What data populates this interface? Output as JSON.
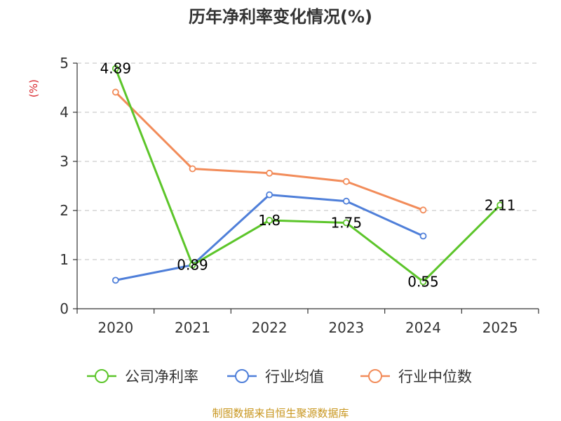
{
  "chart_data": {
    "type": "line",
    "title": "历年净利率变化情况(%)",
    "ylabel": "(%)",
    "categories": [
      "2020",
      "2021",
      "2022",
      "2023",
      "2024",
      "2025"
    ],
    "ylim": [
      0,
      5
    ],
    "yticks": [
      "0",
      "1",
      "2",
      "3",
      "4",
      "5"
    ],
    "grid": true,
    "legend_position": "bottom",
    "series": [
      {
        "name": "公司净利率",
        "color": "#5cc52a",
        "values": [
          4.89,
          0.89,
          1.8,
          1.75,
          0.55,
          2.11
        ],
        "labels": [
          "4.89",
          "0.89",
          "1.8",
          "1.75",
          "0.55",
          "2.11"
        ]
      },
      {
        "name": "行业均值",
        "color": "#4f7fd9",
        "values": [
          0.58,
          0.89,
          2.32,
          2.19,
          1.48,
          null
        ]
      },
      {
        "name": "行业中位数",
        "color": "#f28c5a",
        "values": [
          4.41,
          2.85,
          2.76,
          2.59,
          2.01,
          null
        ]
      }
    ]
  },
  "source": "制图数据来自恒生聚源数据库"
}
